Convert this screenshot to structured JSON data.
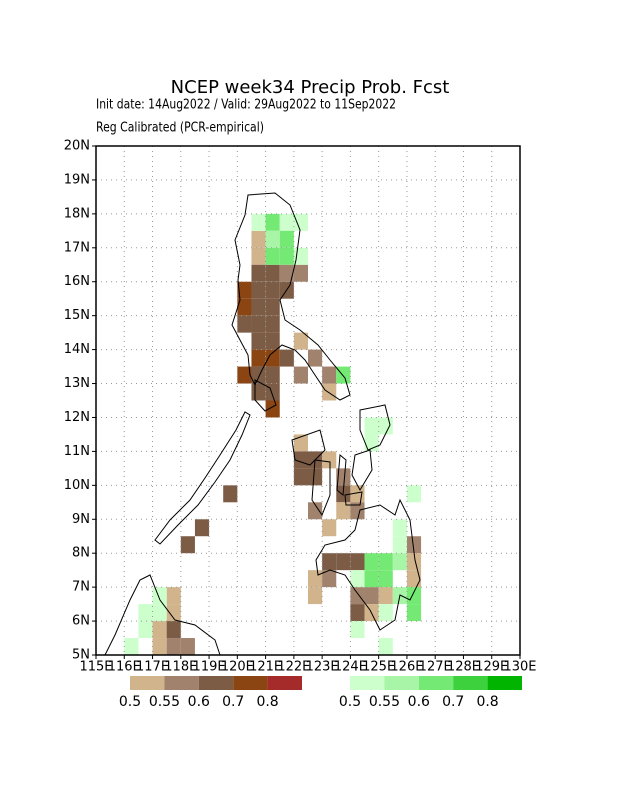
{
  "chart_data": {
    "type": "map",
    "title": "NCEP week34 Precip Prob. Fcst",
    "subtitle": [
      "Init date: 14Aug2022 / Valid: 29Aug2022 to 11Sep2022",
      "Reg Calibrated (PCR-empirical)"
    ],
    "xlim": [
      115,
      130
    ],
    "ylim": [
      5,
      20
    ],
    "xticks": [
      {
        "value": 115,
        "label": "115E"
      },
      {
        "value": 116,
        "label": "116E"
      },
      {
        "value": 117,
        "label": "117E"
      },
      {
        "value": 118,
        "label": "118E"
      },
      {
        "value": 119,
        "label": "119E"
      },
      {
        "value": 120,
        "label": "120E"
      },
      {
        "value": 121,
        "label": "121E"
      },
      {
        "value": 122,
        "label": "122E"
      },
      {
        "value": 123,
        "label": "123E"
      },
      {
        "value": 124,
        "label": "124E"
      },
      {
        "value": 125,
        "label": "125E"
      },
      {
        "value": 126,
        "label": "126E"
      },
      {
        "value": 127,
        "label": "127E"
      },
      {
        "value": 128,
        "label": "128E"
      },
      {
        "value": 129,
        "label": "129E"
      },
      {
        "value": 130,
        "label": "130E"
      }
    ],
    "yticks": [
      {
        "value": 5,
        "label": "5N"
      },
      {
        "value": 6,
        "label": "6N"
      },
      {
        "value": 7,
        "label": "7N"
      },
      {
        "value": 8,
        "label": "8N"
      },
      {
        "value": 9,
        "label": "9N"
      },
      {
        "value": 10,
        "label": "10N"
      },
      {
        "value": 11,
        "label": "11N"
      },
      {
        "value": 12,
        "label": "12N"
      },
      {
        "value": 13,
        "label": "13N"
      },
      {
        "value": 14,
        "label": "14N"
      },
      {
        "value": 15,
        "label": "15N"
      },
      {
        "value": 16,
        "label": "16N"
      },
      {
        "value": 17,
        "label": "17N"
      },
      {
        "value": 18,
        "label": "18N"
      },
      {
        "value": 19,
        "label": "19N"
      },
      {
        "value": 20,
        "label": "20N"
      }
    ],
    "grid": true,
    "cell_size": 0.5,
    "legends": [
      {
        "levels": [
          0.5,
          0.55,
          0.6,
          0.7,
          0.8
        ],
        "colors": [
          "#d2b48c",
          "#a0826d",
          "#7d5c45",
          "#8b4513",
          "#a52a2a"
        ]
      },
      {
        "levels": [
          0.5,
          0.55,
          0.6,
          0.7,
          0.8
        ],
        "colors": [
          "#ccffcc",
          "#a8f5a8",
          "#74ea74",
          "#3ed13e",
          "#00b400"
        ]
      }
    ],
    "dry_cells": [
      [
        120.5,
        17,
        0.5
      ],
      [
        120.5,
        16.5,
        0.5
      ],
      [
        120.5,
        16,
        0.6
      ],
      [
        121,
        16,
        0.6
      ],
      [
        121.5,
        16,
        0.55
      ],
      [
        122,
        16,
        0.55
      ],
      [
        120,
        15.5,
        0.7
      ],
      [
        120.5,
        15.5,
        0.6
      ],
      [
        121,
        15.5,
        0.6
      ],
      [
        121.5,
        15.5,
        0.6
      ],
      [
        120,
        15,
        0.7
      ],
      [
        120.5,
        15,
        0.6
      ],
      [
        121,
        15,
        0.6
      ],
      [
        120,
        14.5,
        0.6
      ],
      [
        120.5,
        14.5,
        0.6
      ],
      [
        121,
        14.5,
        0.6
      ],
      [
        120.5,
        14,
        0.6
      ],
      [
        121,
        14,
        0.6
      ],
      [
        122,
        14,
        0.5
      ],
      [
        120.5,
        13.5,
        0.7
      ],
      [
        121,
        13.5,
        0.7
      ],
      [
        121.5,
        13.5,
        0.6
      ],
      [
        122.5,
        13.5,
        0.55
      ],
      [
        120,
        13,
        0.7
      ],
      [
        120.5,
        13,
        0.6
      ],
      [
        121,
        13,
        0.6
      ],
      [
        122,
        13,
        0.55
      ],
      [
        123,
        13,
        0.55
      ],
      [
        120.5,
        12.5,
        0.6
      ],
      [
        121,
        12.5,
        0.6
      ],
      [
        123,
        12.5,
        0.5
      ],
      [
        121,
        12,
        0.7
      ],
      [
        122,
        11,
        0.5
      ],
      [
        122,
        10.5,
        0.6
      ],
      [
        122.5,
        10.5,
        0.6
      ],
      [
        123,
        10.5,
        0.5
      ],
      [
        122,
        10,
        0.6
      ],
      [
        122.5,
        10,
        0.6
      ],
      [
        123.5,
        10,
        0.55
      ],
      [
        119.5,
        9.5,
        0.6
      ],
      [
        123.5,
        9.5,
        0.6
      ],
      [
        124,
        9.5,
        0.5
      ],
      [
        122.5,
        9,
        0.55
      ],
      [
        123.5,
        9,
        0.5
      ],
      [
        124,
        9,
        0.55
      ],
      [
        118.5,
        8.5,
        0.6
      ],
      [
        123,
        8.5,
        0.5
      ],
      [
        118,
        8,
        0.6
      ],
      [
        126,
        8,
        0.55
      ],
      [
        123,
        7.5,
        0.6
      ],
      [
        123.5,
        7.5,
        0.6
      ],
      [
        124,
        7.5,
        0.6
      ],
      [
        126,
        7.5,
        0.5
      ],
      [
        122.5,
        7,
        0.5
      ],
      [
        123,
        7,
        0.55
      ],
      [
        126,
        7,
        0.5
      ],
      [
        117.5,
        6.5,
        0.5
      ],
      [
        122.5,
        6.5,
        0.5
      ],
      [
        124,
        6.5,
        0.55
      ],
      [
        124.5,
        6.5,
        0.55
      ],
      [
        125,
        6.5,
        0.5
      ],
      [
        117.5,
        6,
        0.5
      ],
      [
        124,
        6,
        0.6
      ],
      [
        124.5,
        6,
        0.5
      ],
      [
        117,
        5.5,
        0.5
      ],
      [
        117.5,
        5.5,
        0.6
      ],
      [
        117,
        5,
        0.5
      ],
      [
        117.5,
        5,
        0.55
      ],
      [
        118,
        5,
        0.55
      ]
    ],
    "wet_cells": [
      [
        120.5,
        17.5,
        0.5
      ],
      [
        121,
        17.5,
        0.6
      ],
      [
        121.5,
        17.5,
        0.5
      ],
      [
        122,
        17.5,
        0.5
      ],
      [
        121,
        17,
        0.55
      ],
      [
        121.5,
        17,
        0.6
      ],
      [
        121,
        16.5,
        0.6
      ],
      [
        121.5,
        16.5,
        0.6
      ],
      [
        122,
        16.5,
        0.5
      ],
      [
        123.5,
        13,
        0.6
      ],
      [
        124.5,
        11.5,
        0.5
      ],
      [
        125,
        11.5,
        0.5
      ],
      [
        124.5,
        11,
        0.5
      ],
      [
        126,
        9.5,
        0.5
      ],
      [
        125.5,
        8.5,
        0.5
      ],
      [
        125.5,
        8,
        0.5
      ],
      [
        124.5,
        7.5,
        0.6
      ],
      [
        125,
        7.5,
        0.6
      ],
      [
        125.5,
        7.5,
        0.55
      ],
      [
        124,
        7,
        0.5
      ],
      [
        124.5,
        7,
        0.6
      ],
      [
        125,
        7,
        0.6
      ],
      [
        117,
        6.5,
        0.5
      ],
      [
        125.5,
        6.5,
        0.55
      ],
      [
        126,
        6.5,
        0.6
      ],
      [
        116.5,
        6,
        0.5
      ],
      [
        117,
        6,
        0.5
      ],
      [
        125,
        6,
        0.5
      ],
      [
        126,
        6,
        0.6
      ],
      [
        116.5,
        5.5,
        0.5
      ],
      [
        124,
        5.5,
        0.5
      ],
      [
        125,
        5,
        0.5
      ],
      [
        116,
        5,
        0.5
      ]
    ]
  }
}
